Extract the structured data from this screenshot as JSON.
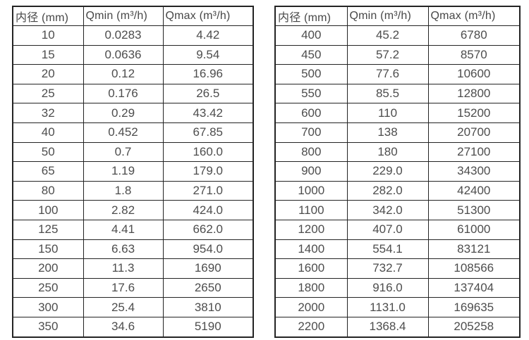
{
  "colors": {
    "background": "#ffffff",
    "border": "#242424",
    "header_text": "#474747",
    "cell_text": "#4d4d4d"
  },
  "tables": [
    {
      "name": "flow-table-small-diameters",
      "headers": [
        "内径 (mm)",
        "Qmin (m³/h)",
        "Qmax (m³/h)"
      ],
      "rows": [
        [
          "10",
          "0.0283",
          "4.42"
        ],
        [
          "15",
          "0.0636",
          "9.54"
        ],
        [
          "20",
          "0.12",
          "16.96"
        ],
        [
          "25",
          "0.176",
          "26.5"
        ],
        [
          "32",
          "0.29",
          "43.42"
        ],
        [
          "40",
          "0.452",
          "67.85"
        ],
        [
          "50",
          "0.7",
          "160.0"
        ],
        [
          "65",
          "1.19",
          "179.0"
        ],
        [
          "80",
          "1.8",
          "271.0"
        ],
        [
          "100",
          "2.82",
          "424.0"
        ],
        [
          "125",
          "4.41",
          "662.0"
        ],
        [
          "150",
          "6.63",
          "954.0"
        ],
        [
          "200",
          "11.3",
          "1690"
        ],
        [
          "250",
          "17.6",
          "2650"
        ],
        [
          "300",
          "25.4",
          "3810"
        ],
        [
          "350",
          "34.6",
          "5190"
        ]
      ]
    },
    {
      "name": "flow-table-large-diameters",
      "headers": [
        "内径 (mm)",
        "Qmin (m³/h)",
        "Qmax (m³/h)"
      ],
      "rows": [
        [
          "400",
          "45.2",
          "6780"
        ],
        [
          "450",
          "57.2",
          "8570"
        ],
        [
          "500",
          "77.6",
          "10600"
        ],
        [
          "550",
          "85.5",
          "12800"
        ],
        [
          "600",
          "110",
          "15200"
        ],
        [
          "700",
          "138",
          "20700"
        ],
        [
          "800",
          "180",
          "27100"
        ],
        [
          "900",
          "229.0",
          "34300"
        ],
        [
          "1000",
          "282.0",
          "42400"
        ],
        [
          "1100",
          "342.0",
          "51300"
        ],
        [
          "1200",
          "407.0",
          "61000"
        ],
        [
          "1400",
          "554.1",
          "83121"
        ],
        [
          "1600",
          "732.7",
          "108566"
        ],
        [
          "1800",
          "916.0",
          "137404"
        ],
        [
          "2000",
          "1131.0",
          "169635"
        ],
        [
          "2200",
          "1368.4",
          "205258"
        ]
      ]
    }
  ]
}
